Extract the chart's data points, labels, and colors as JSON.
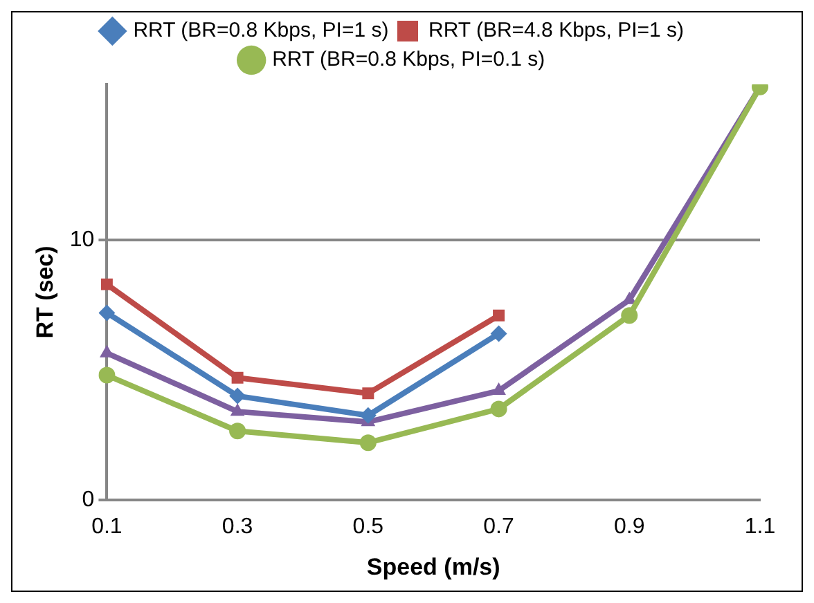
{
  "chart_data": {
    "type": "line",
    "xlabel": "Speed (m/s)",
    "ylabel": "RT (sec)",
    "categories": [
      "0.1",
      "0.3",
      "0.5",
      "0.7",
      "0.9",
      "1.1"
    ],
    "ylim": [
      0,
      16
    ],
    "yticks": [
      0,
      10
    ],
    "grid": "y",
    "legend": "top",
    "series": [
      {
        "name": "RRT (BR=0.8 Kbps, PI=1 s)",
        "color": "#4a7ebb",
        "marker": "diamond",
        "values": [
          7.2,
          4.0,
          3.25,
          6.4,
          null,
          null
        ]
      },
      {
        "name": "RRT (BR=4.8 Kbps, PI=1 s)",
        "color": "#be4b48",
        "marker": "square",
        "values": [
          8.3,
          4.7,
          4.1,
          7.1,
          null,
          null
        ]
      },
      {
        "name": "RRT (BR=0.8 Kbps, PI=0.1 s)",
        "color": "#98b954",
        "marker": "circle",
        "values": [
          4.8,
          2.65,
          2.2,
          3.5,
          7.1,
          15.9
        ]
      },
      {
        "color": "#7d60a0",
        "marker": "triangle",
        "values": [
          5.65,
          3.4,
          3.0,
          4.2,
          7.7,
          15.9
        ]
      }
    ]
  }
}
